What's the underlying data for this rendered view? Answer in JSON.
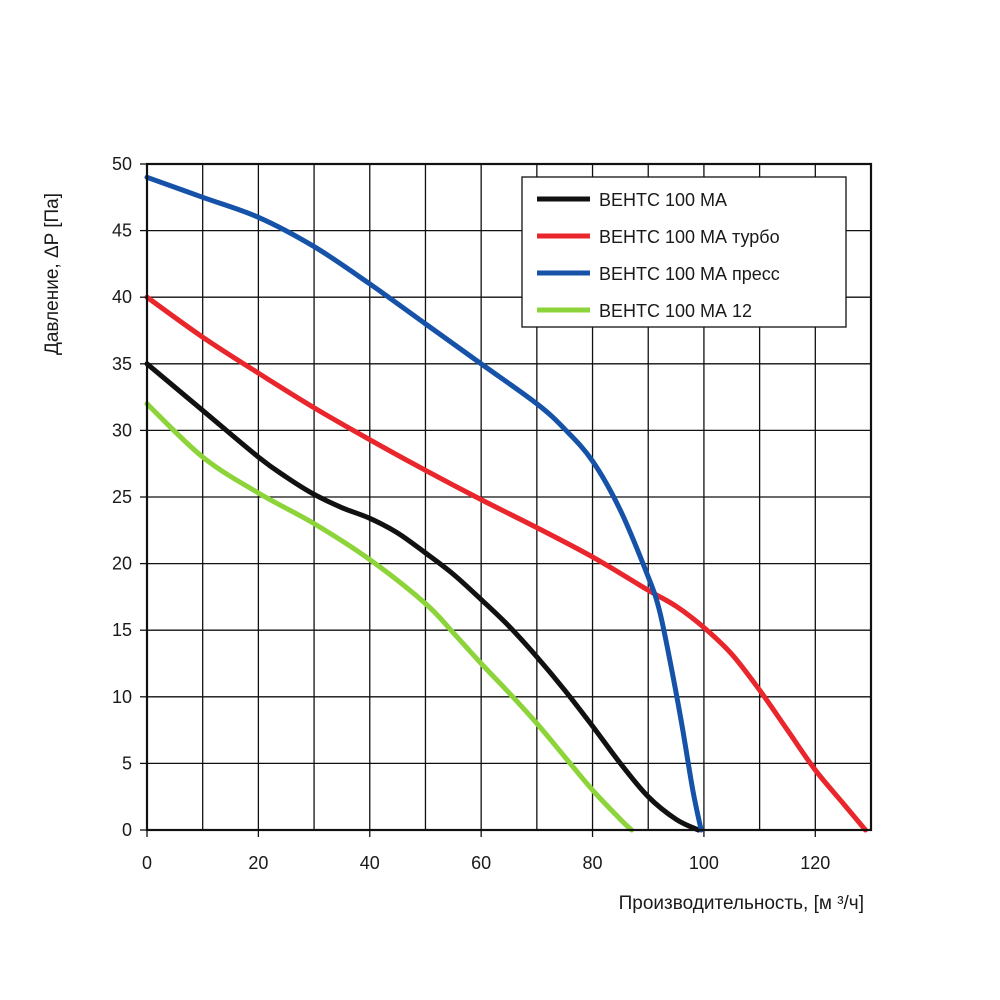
{
  "chart_data": {
    "type": "line",
    "xlabel": "Производительность, [м ³/ч]",
    "ylabel": "Давление, ΔP [Па]",
    "xlim": [
      0,
      130
    ],
    "ylim": [
      0,
      50
    ],
    "x_ticks": [
      0,
      20,
      40,
      60,
      80,
      100,
      120
    ],
    "y_ticks": [
      0,
      5,
      10,
      15,
      20,
      25,
      30,
      35,
      40,
      45,
      50
    ],
    "x_grid_step": 10,
    "y_grid_step": 5,
    "grid": true,
    "legend_position": "top-right",
    "series": [
      {
        "name": "ВЕНТС 100 МА",
        "color": "#111111",
        "x": [
          0,
          10,
          20,
          25,
          30,
          35,
          40,
          45,
          50,
          55,
          60,
          65,
          70,
          75,
          80,
          85,
          90,
          95,
          99
        ],
        "y": [
          35,
          31.5,
          28,
          26.5,
          25.2,
          24.2,
          23.4,
          22.3,
          20.8,
          19.2,
          17.3,
          15.3,
          13,
          10.5,
          7.8,
          5,
          2.5,
          0.8,
          0
        ]
      },
      {
        "name": "ВЕНТС 100 МА турбо",
        "color": "#e8262c",
        "x": [
          0,
          10,
          20,
          30,
          40,
          50,
          60,
          70,
          80,
          90,
          95,
          100,
          105,
          110,
          115,
          120,
          125,
          129
        ],
        "y": [
          40,
          37,
          34.3,
          31.7,
          29.3,
          27,
          24.8,
          22.7,
          20.5,
          18,
          16.8,
          15.2,
          13.2,
          10.5,
          7.5,
          4.5,
          2,
          0
        ]
      },
      {
        "name": "ВЕНТС 100 МА пресс",
        "color": "#1552a8",
        "x": [
          0,
          10,
          20,
          30,
          40,
          50,
          60,
          70,
          75,
          80,
          85,
          90,
          92,
          94,
          96,
          98,
          99.5
        ],
        "y": [
          49,
          47.5,
          46,
          43.8,
          41,
          38,
          35,
          32,
          30.1,
          27.7,
          24,
          19,
          16.5,
          12.5,
          8,
          3,
          0
        ]
      },
      {
        "name": "ВЕНТС 100 МА 12",
        "color": "#8dd33a",
        "x": [
          0,
          10,
          20,
          30,
          40,
          50,
          55,
          60,
          65,
          70,
          75,
          80,
          85,
          87
        ],
        "y": [
          32,
          28,
          25.3,
          23,
          20.3,
          17,
          14.8,
          12.5,
          10.3,
          8,
          5.5,
          3,
          0.8,
          0
        ]
      }
    ]
  }
}
